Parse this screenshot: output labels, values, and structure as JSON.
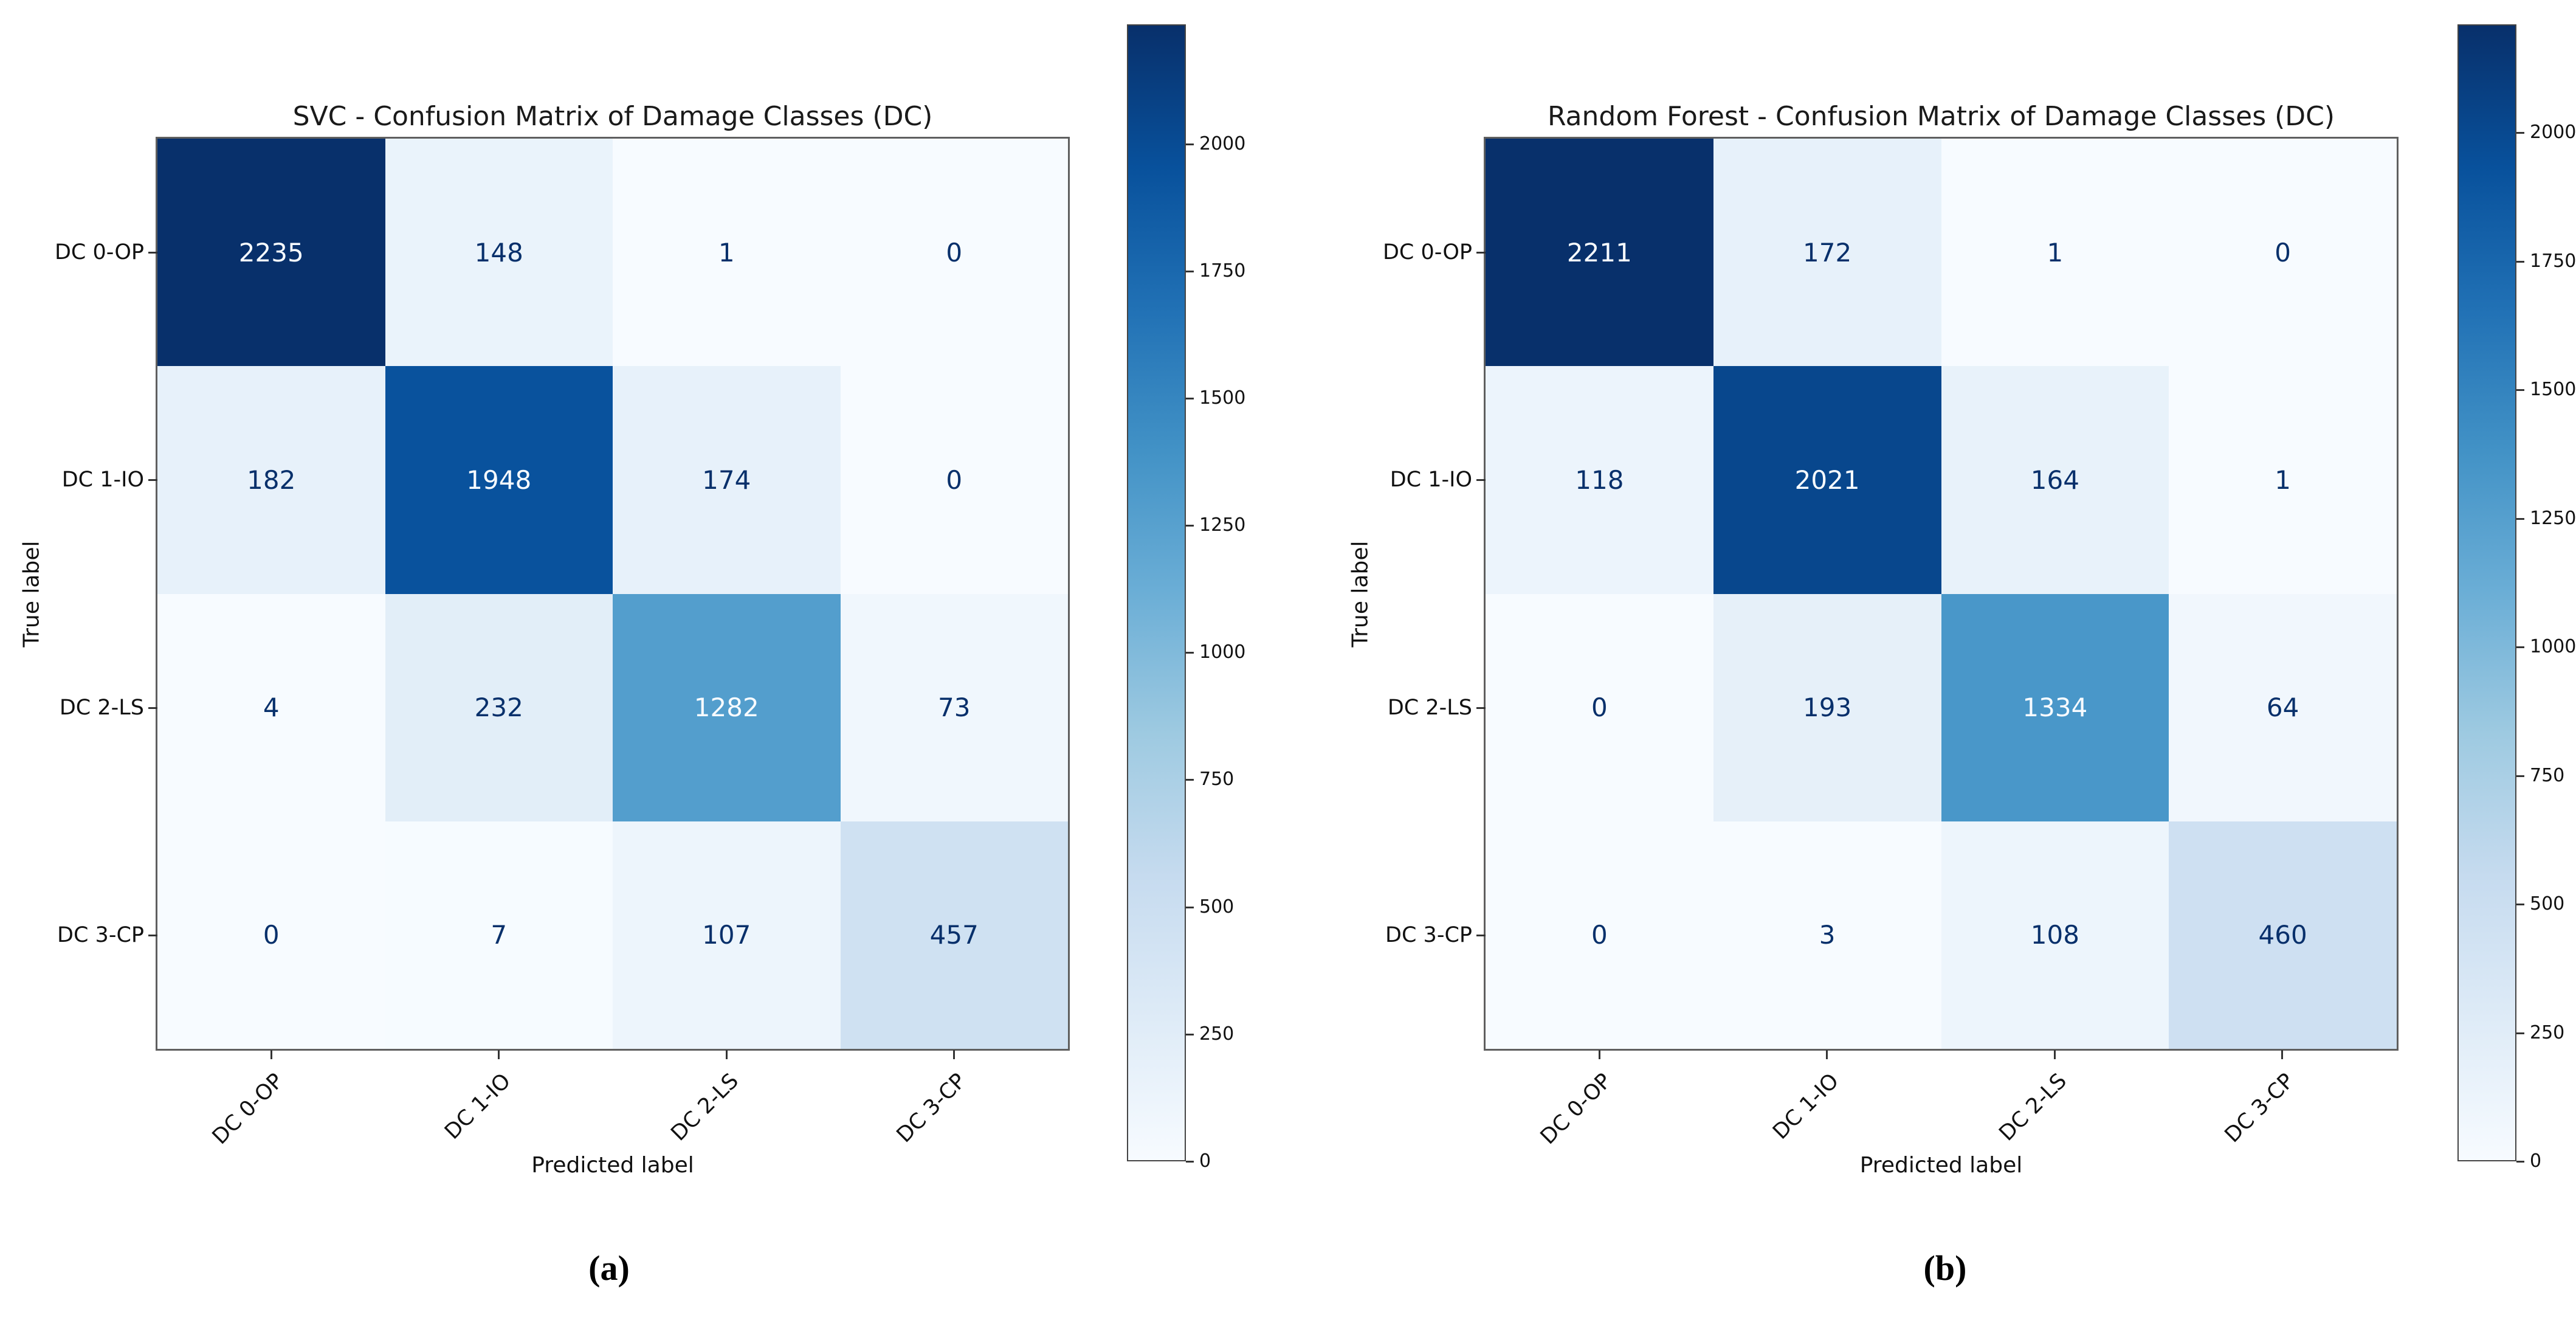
{
  "captions": {
    "a": "(a)",
    "b": "(b)"
  },
  "colormap": {
    "name": "Blues",
    "stops": [
      "#f7fbff",
      "#deebf7",
      "#c6dbef",
      "#9ecae1",
      "#6baed6",
      "#4292c6",
      "#2171b5",
      "#08519c",
      "#08306b"
    ]
  },
  "text_colors": {
    "on_dark": "#f7fbff",
    "on_light": "#08306b"
  },
  "chart_data": [
    {
      "panel": "a",
      "type": "heatmap",
      "title": "SVC - Confusion Matrix of Damage Classes (DC)",
      "xlabel": "Predicted label",
      "ylabel": "True label",
      "x_categories": [
        "DC 0-OP",
        "DC 1-IO",
        "DC 2-LS",
        "DC 3-CP"
      ],
      "y_categories": [
        "DC 0-OP",
        "DC 1-IO",
        "DC 2-LS",
        "DC 3-CP"
      ],
      "values": [
        [
          2235,
          148,
          1,
          0
        ],
        [
          182,
          1948,
          174,
          0
        ],
        [
          4,
          232,
          1282,
          73
        ],
        [
          0,
          7,
          107,
          457
        ]
      ],
      "vmin": 0,
      "vmax": 2235,
      "colorbar_ticks": [
        0,
        250,
        500,
        750,
        1000,
        1250,
        1500,
        1750,
        2000
      ],
      "legend_position": "right-colorbar",
      "grid": false
    },
    {
      "panel": "b",
      "type": "heatmap",
      "title": "Random Forest - Confusion Matrix of Damage Classes (DC)",
      "xlabel": "Predicted label",
      "ylabel": "True label",
      "x_categories": [
        "DC 0-OP",
        "DC 1-IO",
        "DC 2-LS",
        "DC 3-CP"
      ],
      "y_categories": [
        "DC 0-OP",
        "DC 1-IO",
        "DC 2-LS",
        "DC 3-CP"
      ],
      "values": [
        [
          2211,
          172,
          1,
          0
        ],
        [
          118,
          2021,
          164,
          1
        ],
        [
          0,
          193,
          1334,
          64
        ],
        [
          0,
          3,
          108,
          460
        ]
      ],
      "vmin": 0,
      "vmax": 2211,
      "colorbar_ticks": [
        0,
        250,
        500,
        750,
        1000,
        1250,
        1500,
        1750,
        2000
      ],
      "legend_position": "right-colorbar",
      "grid": false
    }
  ]
}
